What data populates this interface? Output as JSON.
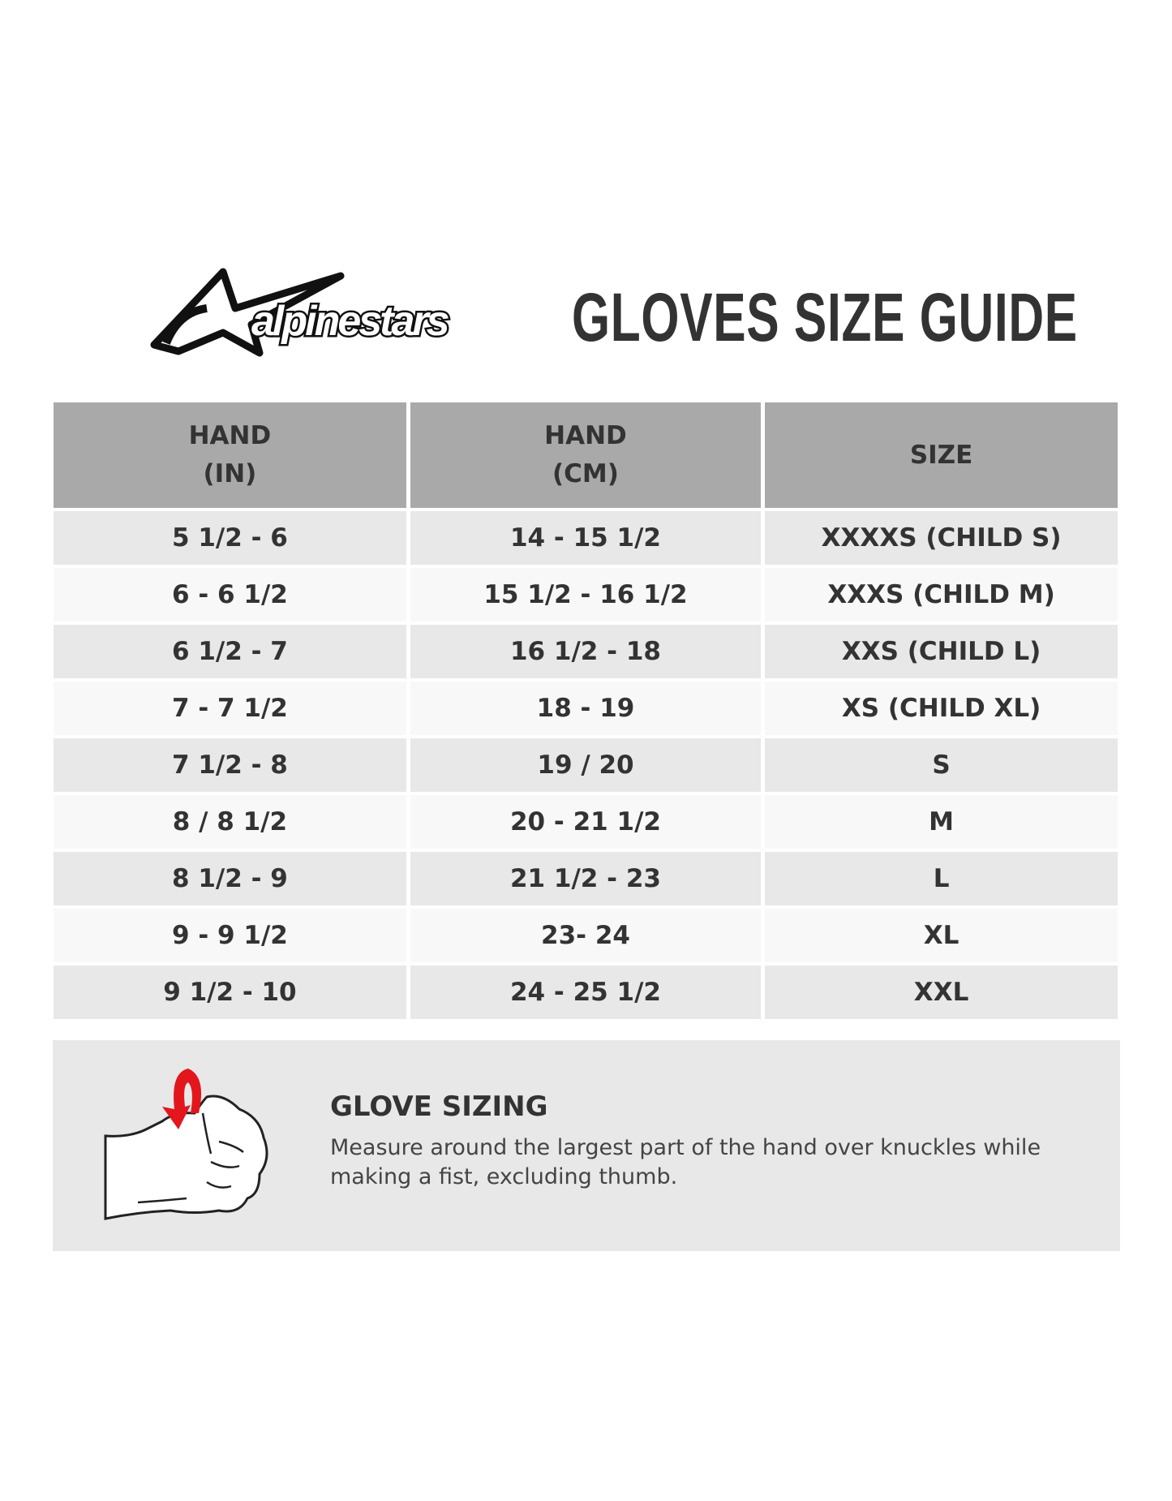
{
  "header": {
    "logo_text": "alpinestars",
    "title": "GLOVES SIZE GUIDE"
  },
  "table": {
    "columns": [
      {
        "line1": "HAND",
        "line2": "(IN)"
      },
      {
        "line1": "HAND",
        "line2": "(CM)"
      },
      {
        "line1": "SIZE",
        "line2": ""
      }
    ],
    "rows": [
      [
        "5 1/2 - 6",
        "14 - 15 1/2",
        "XXXXS (CHILD S)"
      ],
      [
        "6 - 6 1/2",
        "15 1/2 - 16 1/2",
        "XXXS (CHILD M)"
      ],
      [
        "6 1/2 - 7",
        "16 1/2 - 18",
        "XXS (CHILD L)"
      ],
      [
        "7 - 7 1/2",
        "18 - 19",
        "XS (CHILD XL)"
      ],
      [
        "7 1/2 - 8",
        "19 / 20",
        "S"
      ],
      [
        "8 / 8 1/2",
        "20 - 21 1/2",
        "M"
      ],
      [
        "8 1/2 - 9",
        "21 1/2 - 23",
        "L"
      ],
      [
        "9 - 9 1/2",
        "23- 24",
        "XL"
      ],
      [
        "9 1/2 - 10",
        "24 - 25 1/2",
        "XXL"
      ]
    ]
  },
  "sizing": {
    "title": "GLOVE SIZING",
    "text": "Measure around the largest part of the hand over knuckles while making a fist, excluding thumb.",
    "icon": "fist-measure-icon",
    "accent_color": "#e3161d"
  }
}
